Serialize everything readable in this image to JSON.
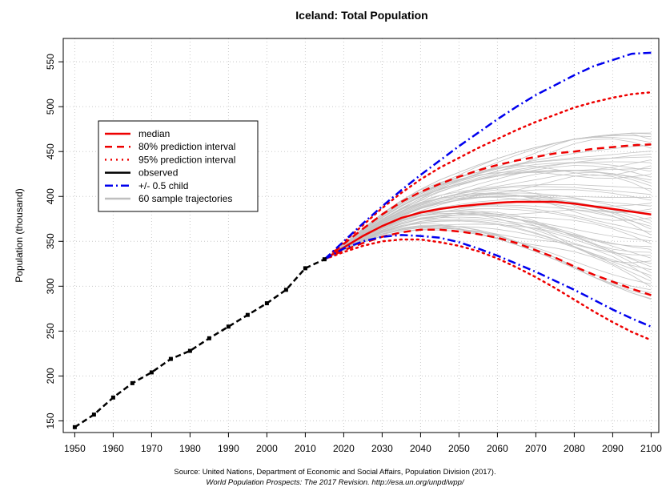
{
  "chart_data": {
    "type": "line",
    "title": "Iceland: Total Population",
    "xlabel": "",
    "ylabel": "Population (thousand)",
    "xlim": [
      1947,
      2102
    ],
    "ylim": [
      137,
      576
    ],
    "x_ticks": [
      1950,
      1960,
      1970,
      1980,
      1990,
      2000,
      2010,
      2020,
      2030,
      2040,
      2050,
      2060,
      2070,
      2080,
      2090,
      2100
    ],
    "y_ticks": [
      150,
      200,
      250,
      300,
      350,
      400,
      450,
      500,
      550
    ],
    "grid": true,
    "legend_position": "top-left",
    "legend": [
      {
        "label": "median",
        "color": "#ee0000",
        "style": "solid"
      },
      {
        "label": "80% prediction interval",
        "color": "#ee0000",
        "style": "dashed"
      },
      {
        "label": "95% prediction interval",
        "color": "#ee0000",
        "style": "dotted"
      },
      {
        "label": "observed",
        "color": "#000000",
        "style": "solid"
      },
      {
        "label": "+/- 0.5 child",
        "color": "#0000ee",
        "style": "dashdot"
      },
      {
        "label": "60 sample trajectories",
        "color": "#bfbfbf",
        "style": "solid"
      }
    ],
    "observed": {
      "x": [
        1950,
        1955,
        1960,
        1965,
        1970,
        1975,
        1980,
        1985,
        1990,
        1995,
        2000,
        2005,
        2010,
        2015
      ],
      "y": [
        143,
        157,
        176,
        192,
        204,
        219,
        228,
        242,
        255,
        268,
        281,
        296,
        320,
        330
      ]
    },
    "projection_x": [
      2015,
      2020,
      2025,
      2030,
      2035,
      2040,
      2045,
      2050,
      2055,
      2060,
      2065,
      2070,
      2075,
      2080,
      2085,
      2090,
      2095,
      2100
    ],
    "series": [
      {
        "name": "median",
        "y": [
          330,
          343,
          356,
          367,
          376,
          382,
          386,
          389,
          391,
          393,
          394,
          394,
          394,
          392,
          389,
          386,
          383,
          380
        ]
      },
      {
        "name": "80% prediction interval",
        "y": [
          330,
          347,
          364,
          380,
          394,
          405,
          414,
          422,
          429,
          435,
          440,
          444,
          448,
          450,
          453,
          455,
          457,
          458
        ]
      },
      {
        "name": "80% prediction interval",
        "y": [
          330,
          340,
          348,
          355,
          360,
          363,
          363,
          361,
          358,
          354,
          348,
          340,
          332,
          322,
          313,
          305,
          297,
          290
        ]
      },
      {
        "name": "95% prediction interval",
        "y": [
          330,
          349,
          368,
          387,
          404,
          419,
          432,
          443,
          454,
          464,
          474,
          483,
          491,
          499,
          505,
          510,
          514,
          516
        ]
      },
      {
        "name": "95% prediction interval",
        "y": [
          330,
          338,
          345,
          350,
          352,
          352,
          349,
          345,
          339,
          331,
          321,
          310,
          298,
          285,
          272,
          260,
          249,
          240
        ]
      },
      {
        "name": "+/- 0.5 child",
        "y": [
          330,
          350,
          370,
          389,
          407,
          424,
          440,
          456,
          471,
          486,
          500,
          513,
          524,
          535,
          545,
          552,
          559,
          560
        ]
      },
      {
        "name": "+/- 0.5 child",
        "y": [
          330,
          342,
          350,
          355,
          357,
          356,
          354,
          349,
          342,
          334,
          325,
          316,
          306,
          296,
          285,
          274,
          264,
          255
        ]
      }
    ]
  },
  "source_line1": "Source: United Nations, Department of Economic and Social Affairs, Population Division (2017).",
  "source_line2": "World Population Prospects: The 2017 Revision. http://esa.un.org/unpd/wpp/"
}
